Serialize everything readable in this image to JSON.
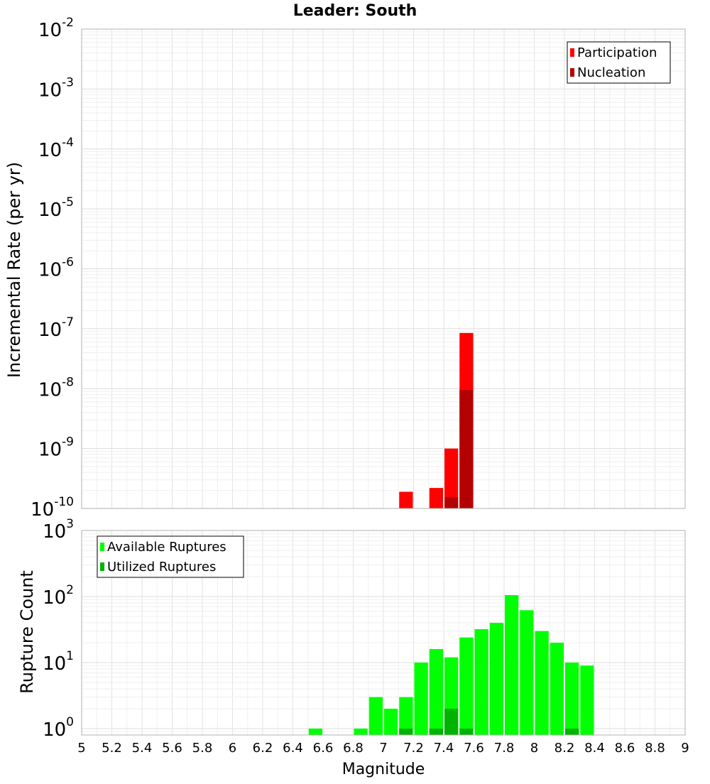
{
  "chart_data": {
    "title": "Leader: South",
    "xlabel": "Magnitude",
    "x_ticks": [
      "5",
      "5.2",
      "5.4",
      "5.6",
      "5.8",
      "6",
      "6.2",
      "6.4",
      "6.6",
      "6.8",
      "7",
      "7.2",
      "7.4",
      "7.6",
      "7.8",
      "8",
      "8.2",
      "8.4",
      "8.6",
      "8.8",
      "9"
    ],
    "xlim": [
      5,
      9
    ],
    "bin_width": 0.1,
    "grid": true,
    "panels": [
      {
        "type": "bar",
        "ylabel": "Incremental Rate (per yr)",
        "yscale": "log",
        "ylim": [
          1e-10,
          0.01
        ],
        "legend_position": "top-right",
        "series": [
          {
            "name": "Participation",
            "color": "#ff0000",
            "data": [
              [
                7.15,
                1.9e-10
              ],
              [
                7.35,
                2.2e-10
              ],
              [
                7.45,
                1e-09
              ],
              [
                7.55,
                8.5e-08
              ]
            ]
          },
          {
            "name": "Nucleation",
            "color": "#b30000",
            "data": [
              [
                7.45,
                1.55e-10
              ],
              [
                7.55,
                9.5e-09
              ]
            ]
          }
        ]
      },
      {
        "type": "bar",
        "ylabel": "Rupture Count",
        "yscale": "log",
        "ylim": [
          0.8,
          1000
        ],
        "legend_position": "top-left",
        "series": [
          {
            "name": "Available Ruptures",
            "color": "#00ff00",
            "data": [
              [
                6.55,
                1
              ],
              [
                6.85,
                1
              ],
              [
                6.95,
                3
              ],
              [
                7.05,
                2
              ],
              [
                7.15,
                3
              ],
              [
                7.25,
                10
              ],
              [
                7.35,
                16
              ],
              [
                7.45,
                12
              ],
              [
                7.55,
                24
              ],
              [
                7.65,
                32
              ],
              [
                7.75,
                40
              ],
              [
                7.85,
                105
              ],
              [
                7.95,
                62
              ],
              [
                8.05,
                30
              ],
              [
                8.15,
                20
              ],
              [
                8.25,
                10
              ],
              [
                8.35,
                9
              ]
            ]
          },
          {
            "name": "Utilized Ruptures",
            "color": "#00b300",
            "data": [
              [
                7.15,
                1
              ],
              [
                7.35,
                1
              ],
              [
                7.45,
                2
              ],
              [
                7.55,
                1
              ],
              [
                8.25,
                1
              ]
            ]
          }
        ]
      }
    ]
  }
}
